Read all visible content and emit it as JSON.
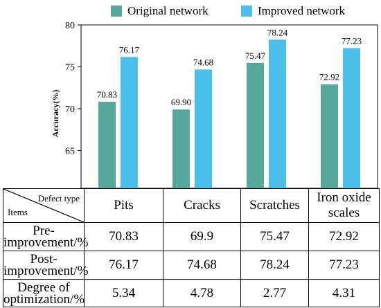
{
  "legend": [
    {
      "name": "Original network",
      "color": "#56a89b"
    },
    {
      "name": "Improved network",
      "color": "#4bbfeb"
    }
  ],
  "chart_data": {
    "type": "bar",
    "categories": [
      "Pits",
      "Cracks",
      "Scratches",
      "Iron oxide scales"
    ],
    "series": [
      {
        "name": "Original network",
        "color": "#56a89b",
        "values": [
          70.83,
          69.9,
          75.47,
          72.92
        ],
        "labels": [
          "70.83",
          "69.90",
          "75.47",
          "72.92"
        ]
      },
      {
        "name": "Improved network",
        "color": "#4bbfeb",
        "values": [
          76.17,
          74.68,
          78.24,
          77.23
        ],
        "labels": [
          "76.17",
          "74.68",
          "78.24",
          "77.23"
        ]
      }
    ],
    "ylabel": "Accuracy(%)",
    "ylim": [
      60.5,
      80
    ],
    "yticks": [
      65,
      70,
      75,
      80
    ],
    "grid": false,
    "legend_position": "top"
  },
  "table": {
    "corner_top": "Defect type",
    "corner_bottom": "Items",
    "columns": [
      "Pits",
      "Cracks",
      "Scratches",
      "Iron oxide scales"
    ],
    "rows": [
      {
        "label": "Pre-improvement/%",
        "values": [
          "70.83",
          "69.9",
          "75.47",
          "72.92"
        ]
      },
      {
        "label": "Post-improvement/%",
        "values": [
          "76.17",
          "74.68",
          "78.24",
          "77.23"
        ]
      },
      {
        "label": "Degree of optimization/%",
        "values": [
          "5.34",
          "4.78",
          "2.77",
          "4.31"
        ]
      }
    ]
  }
}
